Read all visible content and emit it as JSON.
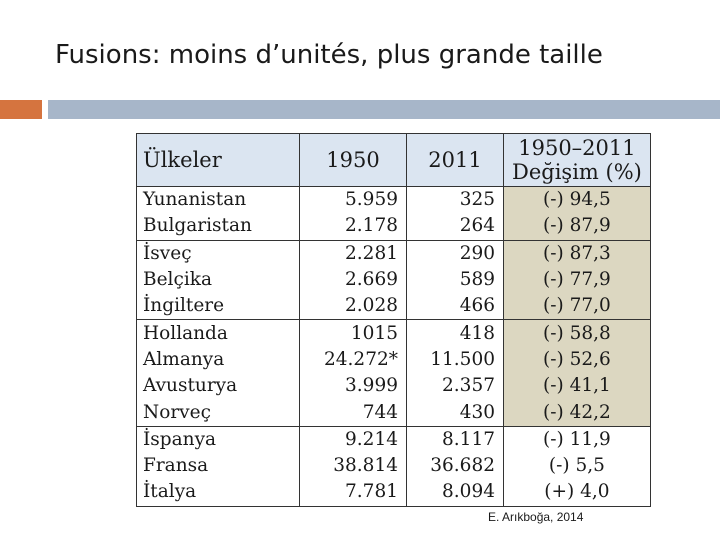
{
  "slide": {
    "title": "Fusions: moins d’unités, plus grande taille",
    "source": "E. Arıkboğa, 2014"
  },
  "table": {
    "headers": {
      "country": "Ülkeler",
      "y1950": "1950",
      "y2011": "2011",
      "change_line1": "1950–2011",
      "change_line2": "Değişim (%)"
    },
    "rows": [
      {
        "country": "Yunanistan",
        "v1950": "5.959",
        "v2011": "325",
        "change": "(-) 94,5"
      },
      {
        "country": "Bulgaristan",
        "v1950": "2.178",
        "v2011": "264",
        "change": "(-) 87,9"
      },
      {
        "country": "İsveç",
        "v1950": "2.281",
        "v2011": "290",
        "change": "(-) 87,3"
      },
      {
        "country": "Belçika",
        "v1950": "2.669",
        "v2011": "589",
        "change": "(-) 77,9"
      },
      {
        "country": "İngiltere",
        "v1950": "2.028",
        "v2011": "466",
        "change": "(-) 77,0"
      },
      {
        "country": "Hollanda",
        "v1950": "1015",
        "v2011": "418",
        "change": "(-) 58,8"
      },
      {
        "country": "Almanya",
        "v1950": "24.272*",
        "v2011": "11.500",
        "change": "(-) 52,6"
      },
      {
        "country": "Avusturya",
        "v1950": "3.999",
        "v2011": "2.357",
        "change": "(-) 41,1"
      },
      {
        "country": "Norveç",
        "v1950": "744",
        "v2011": "430",
        "change": "(-) 42,2"
      },
      {
        "country": "İspanya",
        "v1950": "9.214",
        "v2011": "8.117",
        "change": "(-) 11,9"
      },
      {
        "country": "Fransa",
        "v1950": "38.814",
        "v2011": "36.682",
        "change": "(-) 5,5"
      },
      {
        "country": "İtalya",
        "v1950": "7.781",
        "v2011": "8.094",
        "change": "(+) 4,0"
      }
    ]
  },
  "colors": {
    "accent_orange": "#d5743f",
    "accent_blue": "#a7b6c9",
    "header_fill": "#dbe5f1",
    "change_shade": "#dcd7c1"
  }
}
